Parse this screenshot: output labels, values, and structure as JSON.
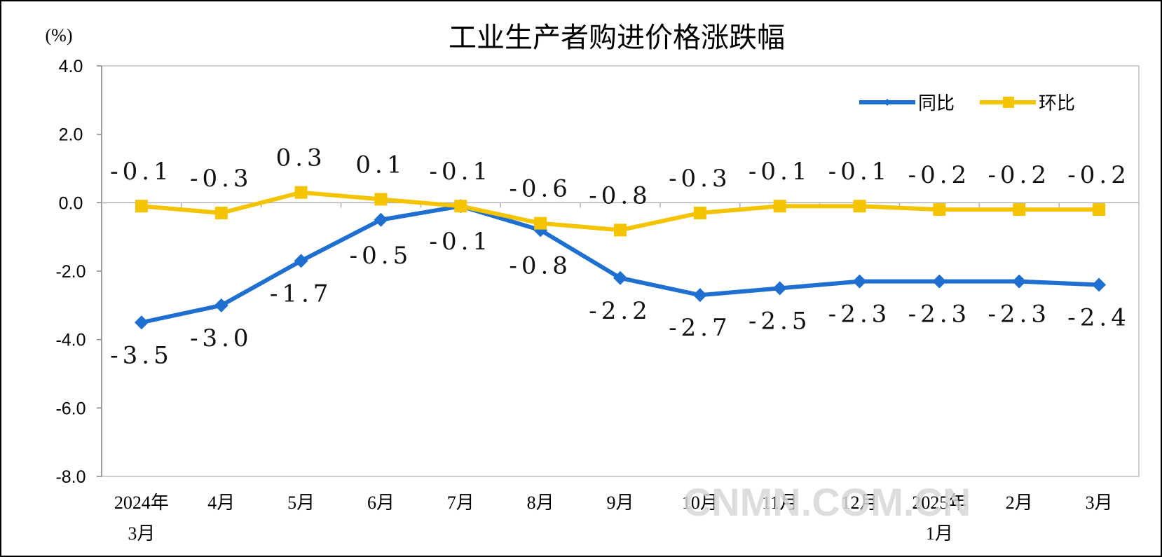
{
  "chart_data": {
    "type": "line",
    "title": "工业生产者购进价格涨跌幅",
    "unit_label": "(%)",
    "categories": [
      [
        "2024年",
        "3月"
      ],
      [
        "4月"
      ],
      [
        "5月"
      ],
      [
        "6月"
      ],
      [
        "7月"
      ],
      [
        "8月"
      ],
      [
        "9月"
      ],
      [
        "10月"
      ],
      [
        "11月"
      ],
      [
        "12月"
      ],
      [
        "2025年",
        "1月"
      ],
      [
        "2月"
      ],
      [
        "3月"
      ]
    ],
    "ylim": [
      -8.0,
      4.0
    ],
    "yticks": [
      "4.0",
      "2.0",
      "0.0",
      "-2.0",
      "-4.0",
      "-6.0",
      "-8.0"
    ],
    "ytick_values": [
      4,
      2,
      0,
      -2,
      -4,
      -6,
      -8
    ],
    "grid": false,
    "legend_position": "top-right",
    "series": [
      {
        "name": "同比",
        "color": "#1f6fd1",
        "marker": "diamond",
        "values": [
          -3.5,
          -3.0,
          -1.7,
          -0.5,
          -0.1,
          -0.8,
          -2.2,
          -2.7,
          -2.5,
          -2.3,
          -2.3,
          -2.3,
          -2.4
        ],
        "labels": [
          "-3.5",
          "-3.0",
          "-1.7",
          "-0.5",
          "-0.1",
          "-0.8",
          "-2.2",
          "-2.7",
          "-2.5",
          "-2.3",
          "-2.3",
          "-2.3",
          "-2.4"
        ]
      },
      {
        "name": "环比",
        "color": "#f5c400",
        "marker": "square",
        "values": [
          -0.1,
          -0.3,
          0.3,
          0.1,
          -0.1,
          -0.6,
          -0.8,
          -0.3,
          -0.1,
          -0.1,
          -0.2,
          -0.2,
          -0.2
        ],
        "labels": [
          "-0.1",
          "-0.3",
          "0.3",
          "0.1",
          "-0.1",
          "-0.6",
          "-0.8",
          "-0.3",
          "-0.1",
          "-0.1",
          "-0.2",
          "-0.2",
          "-0.2"
        ]
      }
    ]
  },
  "watermark": "CNMN.COM.CN"
}
